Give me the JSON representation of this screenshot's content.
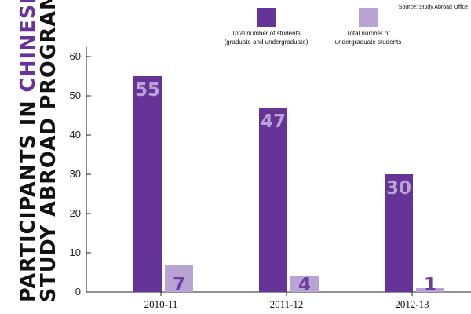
{
  "source": "Source: Study Abroad Office",
  "title_part1": "PARTICIPANTS IN ",
  "title_highlight": "CHINESE",
  "title_line2": "STUDY ABROAD PROGRAMS",
  "colors": {
    "total": "#663399",
    "undergrad": "#b7a3d4",
    "title": "#111111",
    "highlight": "#663399"
  },
  "chart_data": {
    "type": "bar",
    "categories": [
      "2010-11",
      "2011-12",
      "2012-13"
    ],
    "series": [
      {
        "name": "Total number of students (graduate and undergraduate)",
        "values": [
          55,
          47,
          30
        ]
      },
      {
        "name": "Total number of undergraduate students",
        "values": [
          7,
          4,
          1
        ]
      }
    ],
    "data_labels": [
      [
        "55",
        "47",
        "30"
      ],
      [
        "7",
        "4",
        "1"
      ]
    ],
    "legend": [
      {
        "lines": [
          "Total number of students",
          "(graduate and undergraduate)"
        ]
      },
      {
        "lines": [
          "Total number of",
          "undergraduate students"
        ]
      }
    ],
    "yticks": [
      "60",
      "50",
      "40",
      "30",
      "20",
      "10",
      "0"
    ],
    "ylim": [
      0,
      60
    ],
    "grid": false,
    "legend_position": "top"
  }
}
